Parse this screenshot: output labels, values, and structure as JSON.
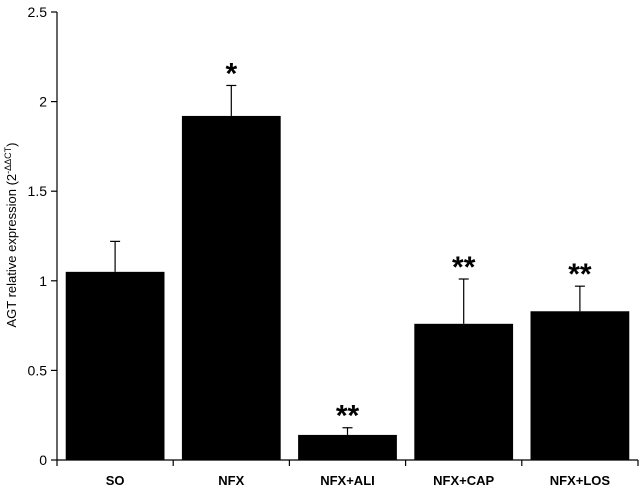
{
  "chart_data": {
    "type": "bar",
    "categories": [
      "SO",
      "NFX",
      "NFX+ALI",
      "NFX+CAP",
      "NFX+LOS"
    ],
    "values": [
      1.05,
      1.92,
      0.14,
      0.76,
      0.83
    ],
    "error_upper": [
      0.17,
      0.17,
      0.04,
      0.25,
      0.14
    ],
    "significance": [
      "",
      "*",
      "**",
      "**",
      "**"
    ],
    "ylabel": "AGT relative expression (2",
    "ylabel_superscript": "-ΔΔCT",
    "ylabel_close": ")",
    "ylim": [
      0,
      2.5
    ],
    "yticks": [
      0,
      0.5,
      1,
      1.5,
      2,
      2.5
    ],
    "ytick_labels": [
      "0",
      "0.5",
      "1",
      "1.5",
      "2",
      "2.5"
    ],
    "bar_color": "#000000",
    "grid": false,
    "legend": "none"
  }
}
